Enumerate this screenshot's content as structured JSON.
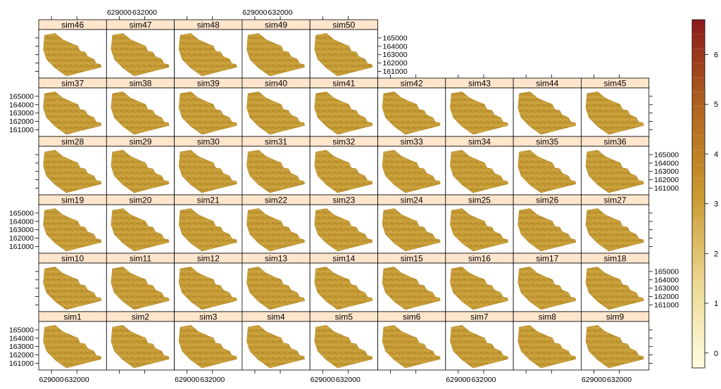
{
  "chart_data": {
    "type": "heatmap",
    "panels": [
      "sim46",
      "sim47",
      "sim48",
      "sim49",
      "sim50",
      "sim37",
      "sim38",
      "sim39",
      "sim40",
      "sim41",
      "sim42",
      "sim43",
      "sim44",
      "sim45",
      "sim28",
      "sim29",
      "sim30",
      "sim31",
      "sim32",
      "sim33",
      "sim34",
      "sim35",
      "sim36",
      "sim19",
      "sim20",
      "sim21",
      "sim22",
      "sim23",
      "sim24",
      "sim25",
      "sim26",
      "sim27",
      "sim10",
      "sim11",
      "sim12",
      "sim13",
      "sim14",
      "sim15",
      "sim16",
      "sim17",
      "sim18",
      "sim1",
      "sim2",
      "sim3",
      "sim4",
      "sim5",
      "sim6",
      "sim7",
      "sim8",
      "sim9"
    ],
    "x_ticks": [
      "629000",
      "632000"
    ],
    "y_ticks": [
      "165000",
      "164000",
      "163000",
      "162000",
      "161000"
    ],
    "xlim": [
      627500,
      635500
    ],
    "ylim": [
      160200,
      166000
    ],
    "colorbar": {
      "ticks": [
        "0",
        "1",
        "2",
        "3",
        "4",
        "5",
        "6"
      ],
      "range": [
        -0.3,
        6.7
      ],
      "low_color": "#fffde0",
      "mid_color": "#c9982e",
      "high_color": "#8b1a1a"
    },
    "raster_color": "#c39a34",
    "strip_color": "#ffe5cc"
  }
}
